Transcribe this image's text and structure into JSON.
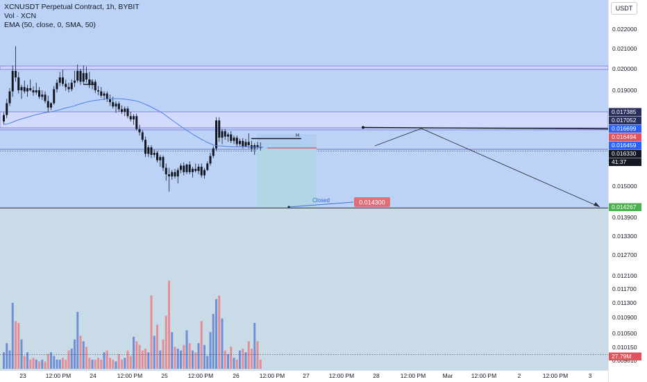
{
  "header": {
    "title": "XCNUSDT Perpetual Contract, 1h, BYBIT",
    "volume_label": "Vol · XCN",
    "ema_label": "EMA (50, close, 0, SMA, 50)"
  },
  "currency_button": "USDT",
  "colors": {
    "up": "#5b7fd1",
    "down": "#e06e79",
    "ema": "#4f7fe4",
    "zone_upper": "#bcd3f7",
    "zone_lower": "#c8dbe6",
    "zone_box": "#bcd7eb"
  },
  "chart_data": {
    "type": "candlestick",
    "symbol": "XCNUSDT Perpetual Contract",
    "timeframe": "1h",
    "exchange": "BYBIT",
    "y_axis_ticks": [
      "0.022000",
      "0.021000",
      "0.020000",
      "0.019000",
      "0.015000",
      "0.013900",
      "0.013300",
      "0.012700",
      "0.012100",
      "0.011700",
      "0.011300",
      "0.010900",
      "0.010500",
      "0.010150",
      "0.009810"
    ],
    "x_axis_ticks": [
      "23",
      "12:00 PM",
      "24",
      "12:00 PM",
      "25",
      "12:00 PM",
      "26",
      "12:00 PM",
      "27",
      "12:00 PM",
      "28",
      "12:00 PM",
      "Mar",
      "12:00 PM",
      "2",
      "12:00 PM",
      "3"
    ],
    "price_labels": [
      {
        "value": "0.017385",
        "color": "#2a2e5a"
      },
      {
        "value": "0.017052",
        "color": "#2a2e5a"
      },
      {
        "value": "0.016699",
        "color": "#2962ff"
      },
      {
        "value": "0.016494",
        "color": "#e0535c"
      },
      {
        "value": "0.016459",
        "color": "#2962ff"
      },
      {
        "value": "0.016330",
        "color": "#131722"
      },
      {
        "value": "41:37",
        "color": "#131722"
      },
      {
        "value": "0.014267",
        "color": "#4caf50"
      },
      {
        "value": "27.79M",
        "color": "#e0535c"
      }
    ],
    "levels": {
      "range_high": [
        0.02002,
        0.02015
      ],
      "supply_zone": [
        0.01705,
        0.017385
      ],
      "current_price": 0.01633,
      "target": 0.014267
    },
    "annotations": {
      "closed_label": "Closed",
      "closed_price": "0.014300",
      "h_marks": [
        "H",
        "H"
      ]
    },
    "candles": [
      {
        "o": 0.01755,
        "h": 0.01798,
        "l": 0.01742,
        "c": 0.01785,
        "v": 0.18
      },
      {
        "o": 0.01785,
        "h": 0.0186,
        "l": 0.0177,
        "c": 0.0184,
        "v": 0.28
      },
      {
        "o": 0.0184,
        "h": 0.0191,
        "l": 0.01828,
        "c": 0.01895,
        "v": 0.2
      },
      {
        "o": 0.01895,
        "h": 0.02015,
        "l": 0.0187,
        "c": 0.0199,
        "v": 0.72
      },
      {
        "o": 0.0199,
        "h": 0.02105,
        "l": 0.0194,
        "c": 0.0196,
        "v": 0.52
      },
      {
        "o": 0.0196,
        "h": 0.01985,
        "l": 0.01885,
        "c": 0.019,
        "v": 0.5
      },
      {
        "o": 0.019,
        "h": 0.01925,
        "l": 0.0186,
        "c": 0.01915,
        "v": 0.32
      },
      {
        "o": 0.01915,
        "h": 0.01945,
        "l": 0.01885,
        "c": 0.01895,
        "v": 0.14
      },
      {
        "o": 0.01895,
        "h": 0.01925,
        "l": 0.0187,
        "c": 0.0191,
        "v": 0.18
      },
      {
        "o": 0.0191,
        "h": 0.0195,
        "l": 0.01895,
        "c": 0.019,
        "v": 0.1
      },
      {
        "o": 0.019,
        "h": 0.01918,
        "l": 0.01875,
        "c": 0.0189,
        "v": 0.12
      },
      {
        "o": 0.0189,
        "h": 0.01935,
        "l": 0.0188,
        "c": 0.019,
        "v": 0.1
      },
      {
        "o": 0.019,
        "h": 0.01915,
        "l": 0.0186,
        "c": 0.0187,
        "v": 0.08
      },
      {
        "o": 0.0187,
        "h": 0.019,
        "l": 0.01855,
        "c": 0.0188,
        "v": 0.1
      },
      {
        "o": 0.0188,
        "h": 0.01895,
        "l": 0.0184,
        "c": 0.0185,
        "v": 0.08
      },
      {
        "o": 0.0185,
        "h": 0.01875,
        "l": 0.018,
        "c": 0.0182,
        "v": 0.16
      },
      {
        "o": 0.0182,
        "h": 0.01845,
        "l": 0.01808,
        "c": 0.0184,
        "v": 0.18
      },
      {
        "o": 0.0184,
        "h": 0.0192,
        "l": 0.01832,
        "c": 0.01905,
        "v": 0.14
      },
      {
        "o": 0.01905,
        "h": 0.0195,
        "l": 0.0189,
        "c": 0.01935,
        "v": 0.1
      },
      {
        "o": 0.01935,
        "h": 0.01985,
        "l": 0.0192,
        "c": 0.0196,
        "v": 0.1
      },
      {
        "o": 0.0196,
        "h": 0.01995,
        "l": 0.01918,
        "c": 0.0193,
        "v": 0.12
      },
      {
        "o": 0.0193,
        "h": 0.0195,
        "l": 0.01898,
        "c": 0.01915,
        "v": 0.1
      },
      {
        "o": 0.01915,
        "h": 0.01935,
        "l": 0.0189,
        "c": 0.01905,
        "v": 0.2
      },
      {
        "o": 0.01905,
        "h": 0.0195,
        "l": 0.01895,
        "c": 0.01935,
        "v": 0.22
      },
      {
        "o": 0.01935,
        "h": 0.0199,
        "l": 0.01915,
        "c": 0.01945,
        "v": 0.32
      },
      {
        "o": 0.01945,
        "h": 0.0202,
        "l": 0.01935,
        "c": 0.0199,
        "v": 0.62
      },
      {
        "o": 0.0199,
        "h": 0.02,
        "l": 0.01925,
        "c": 0.0194,
        "v": 0.36
      },
      {
        "o": 0.0194,
        "h": 0.02015,
        "l": 0.0193,
        "c": 0.0198,
        "v": 0.3
      },
      {
        "o": 0.0198,
        "h": 0.0201,
        "l": 0.01935,
        "c": 0.0195,
        "v": 0.24
      },
      {
        "o": 0.0195,
        "h": 0.01985,
        "l": 0.0191,
        "c": 0.01925,
        "v": 0.12
      },
      {
        "o": 0.01925,
        "h": 0.0195,
        "l": 0.01905,
        "c": 0.0194,
        "v": 0.1
      },
      {
        "o": 0.0194,
        "h": 0.0195,
        "l": 0.01888,
        "c": 0.019,
        "v": 0.1
      },
      {
        "o": 0.019,
        "h": 0.0192,
        "l": 0.01878,
        "c": 0.01895,
        "v": 0.12
      },
      {
        "o": 0.01895,
        "h": 0.01915,
        "l": 0.01865,
        "c": 0.01875,
        "v": 0.1
      },
      {
        "o": 0.01875,
        "h": 0.01895,
        "l": 0.01855,
        "c": 0.01885,
        "v": 0.18
      },
      {
        "o": 0.01885,
        "h": 0.01895,
        "l": 0.01845,
        "c": 0.01858,
        "v": 0.2
      },
      {
        "o": 0.01858,
        "h": 0.0188,
        "l": 0.01828,
        "c": 0.01845,
        "v": 0.12
      },
      {
        "o": 0.01845,
        "h": 0.0187,
        "l": 0.01815,
        "c": 0.01825,
        "v": 0.1
      },
      {
        "o": 0.01825,
        "h": 0.0185,
        "l": 0.01795,
        "c": 0.01838,
        "v": 0.08
      },
      {
        "o": 0.01838,
        "h": 0.01848,
        "l": 0.018,
        "c": 0.01812,
        "v": 0.16
      },
      {
        "o": 0.01812,
        "h": 0.0183,
        "l": 0.0179,
        "c": 0.018,
        "v": 0.1
      },
      {
        "o": 0.018,
        "h": 0.01825,
        "l": 0.0178,
        "c": 0.01815,
        "v": 0.12
      },
      {
        "o": 0.01815,
        "h": 0.01825,
        "l": 0.0177,
        "c": 0.0178,
        "v": 0.2
      },
      {
        "o": 0.0178,
        "h": 0.018,
        "l": 0.01755,
        "c": 0.01765,
        "v": 0.14
      },
      {
        "o": 0.01765,
        "h": 0.0179,
        "l": 0.0174,
        "c": 0.0178,
        "v": 0.35
      },
      {
        "o": 0.0178,
        "h": 0.01792,
        "l": 0.01712,
        "c": 0.0172,
        "v": 0.3
      },
      {
        "o": 0.0172,
        "h": 0.0174,
        "l": 0.0169,
        "c": 0.01705,
        "v": 0.26
      },
      {
        "o": 0.01705,
        "h": 0.01715,
        "l": 0.0166,
        "c": 0.0167,
        "v": 0.2
      },
      {
        "o": 0.0167,
        "h": 0.01685,
        "l": 0.0159,
        "c": 0.01605,
        "v": 0.22
      },
      {
        "o": 0.01605,
        "h": 0.01645,
        "l": 0.0159,
        "c": 0.01635,
        "v": 0.18
      },
      {
        "o": 0.01635,
        "h": 0.01645,
        "l": 0.01585,
        "c": 0.016,
        "v": 0.8
      },
      {
        "o": 0.016,
        "h": 0.01625,
        "l": 0.01588,
        "c": 0.0161,
        "v": 0.36
      },
      {
        "o": 0.0161,
        "h": 0.01618,
        "l": 0.01565,
        "c": 0.01575,
        "v": 0.48
      },
      {
        "o": 0.01575,
        "h": 0.016,
        "l": 0.01545,
        "c": 0.0159,
        "v": 0.2
      },
      {
        "o": 0.0159,
        "h": 0.01598,
        "l": 0.01525,
        "c": 0.0154,
        "v": 0.32
      },
      {
        "o": 0.0154,
        "h": 0.0156,
        "l": 0.0148,
        "c": 0.0151,
        "v": 0.58
      },
      {
        "o": 0.0151,
        "h": 0.0154,
        "l": 0.0143,
        "c": 0.015,
        "v": 0.96
      },
      {
        "o": 0.015,
        "h": 0.0153,
        "l": 0.01485,
        "c": 0.0152,
        "v": 0.4
      },
      {
        "o": 0.0152,
        "h": 0.01535,
        "l": 0.0149,
        "c": 0.015,
        "v": 0.24
      },
      {
        "o": 0.015,
        "h": 0.0154,
        "l": 0.01468,
        "c": 0.0153,
        "v": 0.22
      },
      {
        "o": 0.0153,
        "h": 0.0156,
        "l": 0.01515,
        "c": 0.0155,
        "v": 0.2
      },
      {
        "o": 0.0155,
        "h": 0.01565,
        "l": 0.01505,
        "c": 0.0152,
        "v": 0.26
      },
      {
        "o": 0.0152,
        "h": 0.0156,
        "l": 0.0151,
        "c": 0.01555,
        "v": 0.42
      },
      {
        "o": 0.01555,
        "h": 0.0157,
        "l": 0.0151,
        "c": 0.0152,
        "v": 0.28
      },
      {
        "o": 0.0152,
        "h": 0.01545,
        "l": 0.01495,
        "c": 0.01535,
        "v": 0.2
      },
      {
        "o": 0.01535,
        "h": 0.0156,
        "l": 0.01518,
        "c": 0.01525,
        "v": 0.18
      },
      {
        "o": 0.01525,
        "h": 0.01558,
        "l": 0.0151,
        "c": 0.01545,
        "v": 0.28
      },
      {
        "o": 0.01545,
        "h": 0.0156,
        "l": 0.01495,
        "c": 0.01505,
        "v": 0.52
      },
      {
        "o": 0.01505,
        "h": 0.0154,
        "l": 0.0149,
        "c": 0.0153,
        "v": 0.26
      },
      {
        "o": 0.0153,
        "h": 0.0157,
        "l": 0.01525,
        "c": 0.0156,
        "v": 0.14
      },
      {
        "o": 0.0156,
        "h": 0.0161,
        "l": 0.0155,
        "c": 0.01595,
        "v": 0.4
      },
      {
        "o": 0.01595,
        "h": 0.0164,
        "l": 0.01585,
        "c": 0.0163,
        "v": 0.6
      },
      {
        "o": 0.0163,
        "h": 0.01775,
        "l": 0.0162,
        "c": 0.0176,
        "v": 0.76
      },
      {
        "o": 0.0176,
        "h": 0.01775,
        "l": 0.0166,
        "c": 0.0168,
        "v": 0.8
      },
      {
        "o": 0.0168,
        "h": 0.0172,
        "l": 0.0165,
        "c": 0.0171,
        "v": 0.55
      },
      {
        "o": 0.0171,
        "h": 0.0172,
        "l": 0.0167,
        "c": 0.01685,
        "v": 0.2
      },
      {
        "o": 0.01685,
        "h": 0.01705,
        "l": 0.0166,
        "c": 0.01695,
        "v": 0.16
      },
      {
        "o": 0.01695,
        "h": 0.0171,
        "l": 0.01655,
        "c": 0.01665,
        "v": 0.24
      },
      {
        "o": 0.01665,
        "h": 0.0169,
        "l": 0.0165,
        "c": 0.0168,
        "v": 0.12
      },
      {
        "o": 0.0168,
        "h": 0.0169,
        "l": 0.01635,
        "c": 0.0165,
        "v": 0.1
      },
      {
        "o": 0.0165,
        "h": 0.01675,
        "l": 0.0164,
        "c": 0.01665,
        "v": 0.2
      },
      {
        "o": 0.01665,
        "h": 0.01678,
        "l": 0.0163,
        "c": 0.0164,
        "v": 0.22
      },
      {
        "o": 0.0164,
        "h": 0.01675,
        "l": 0.01635,
        "c": 0.0166,
        "v": 0.18
      },
      {
        "o": 0.0166,
        "h": 0.017,
        "l": 0.0163,
        "c": 0.01645,
        "v": 0.3
      },
      {
        "o": 0.01645,
        "h": 0.01665,
        "l": 0.01615,
        "c": 0.0163,
        "v": 0.22
      },
      {
        "o": 0.0163,
        "h": 0.01655,
        "l": 0.016,
        "c": 0.01645,
        "v": 0.5
      },
      {
        "o": 0.01645,
        "h": 0.0166,
        "l": 0.01625,
        "c": 0.01635,
        "v": 0.3
      },
      {
        "o": 0.01635,
        "h": 0.01658,
        "l": 0.0162,
        "c": 0.01633,
        "v": 0.1
      }
    ],
    "ema": [
      0.01741,
      0.01743,
      0.01747,
      0.01752,
      0.01758,
      0.01763,
      0.01767,
      0.01771,
      0.01775,
      0.01779,
      0.01783,
      0.01787,
      0.0179,
      0.01793,
      0.01796,
      0.01798,
      0.018,
      0.01803,
      0.01806,
      0.0181,
      0.01814,
      0.01818,
      0.01821,
      0.01824,
      0.01828,
      0.01833,
      0.01837,
      0.01841,
      0.01845,
      0.01848,
      0.01851,
      0.01853,
      0.01855,
      0.01857,
      0.01859,
      0.0186,
      0.01861,
      0.01861,
      0.01861,
      0.01861,
      0.0186,
      0.01859,
      0.01857,
      0.01855,
      0.01853,
      0.0185,
      0.01846,
      0.01841,
      0.01835,
      0.01829,
      0.01822,
      0.01815,
      0.01808,
      0.018,
      0.01792,
      0.01782,
      0.01772,
      0.01762,
      0.01752,
      0.01742,
      0.01733,
      0.01723,
      0.01714,
      0.01705,
      0.01696,
      0.01688,
      0.0168,
      0.01672,
      0.01665,
      0.01658,
      0.01652,
      0.01646,
      0.01643,
      0.01642,
      0.01641,
      0.0164,
      0.01639,
      0.01638,
      0.01638,
      0.01637,
      0.01637,
      0.01637,
      0.01637,
      0.01637,
      0.01637,
      0.01636,
      0.01636,
      0.01636,
      0.01636
    ]
  }
}
